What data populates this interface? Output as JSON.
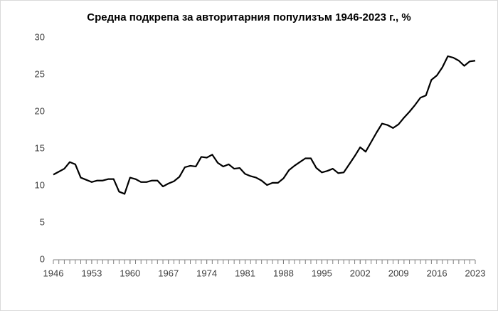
{
  "chart_data": {
    "type": "line",
    "title": "Средна подкрепа за авторитарния популизъм 1946-2023 г., %",
    "x": [
      1946,
      1947,
      1948,
      1949,
      1950,
      1951,
      1952,
      1953,
      1954,
      1955,
      1956,
      1957,
      1958,
      1959,
      1960,
      1961,
      1962,
      1963,
      1964,
      1965,
      1966,
      1967,
      1968,
      1969,
      1970,
      1971,
      1972,
      1973,
      1974,
      1975,
      1976,
      1977,
      1978,
      1979,
      1980,
      1981,
      1982,
      1983,
      1984,
      1985,
      1986,
      1987,
      1988,
      1989,
      1990,
      1991,
      1992,
      1993,
      1994,
      1995,
      1996,
      1997,
      1998,
      1999,
      2000,
      2001,
      2002,
      2003,
      2004,
      2005,
      2006,
      2007,
      2008,
      2009,
      2010,
      2011,
      2012,
      2013,
      2014,
      2015,
      2016,
      2017,
      2018,
      2019,
      2020,
      2021,
      2022,
      2023
    ],
    "series": [
      {
        "name": "Средна подкрепа",
        "color": "#000000",
        "values": [
          11.5,
          11.9,
          12.3,
          13.2,
          12.9,
          11.1,
          10.8,
          10.5,
          10.7,
          10.7,
          10.9,
          10.9,
          9.2,
          8.9,
          11.1,
          10.9,
          10.5,
          10.5,
          10.7,
          10.7,
          9.9,
          10.3,
          10.6,
          11.2,
          12.5,
          12.7,
          12.6,
          13.9,
          13.8,
          14.2,
          13.1,
          12.6,
          12.9,
          12.3,
          12.4,
          11.6,
          11.3,
          11.1,
          10.7,
          10.1,
          10.4,
          10.4,
          11.0,
          12.1,
          12.7,
          13.2,
          13.7,
          13.7,
          12.4,
          11.8,
          12.0,
          12.3,
          11.7,
          11.8,
          12.9,
          14.0,
          15.2,
          14.6,
          15.9,
          17.2,
          18.4,
          18.2,
          17.8,
          18.3,
          19.2,
          20.0,
          20.9,
          21.9,
          22.2,
          24.3,
          24.9,
          26.0,
          27.5,
          27.3,
          26.9,
          26.2,
          26.8,
          26.9
        ]
      }
    ],
    "xlim": [
      1946,
      2023
    ],
    "xticks": [
      1946,
      1953,
      1960,
      1967,
      1974,
      1981,
      1988,
      1995,
      2002,
      2009,
      2016,
      2023
    ],
    "ylim": [
      0,
      30
    ],
    "yticks": [
      0,
      5,
      10,
      15,
      20,
      25,
      30
    ],
    "grid": false
  }
}
